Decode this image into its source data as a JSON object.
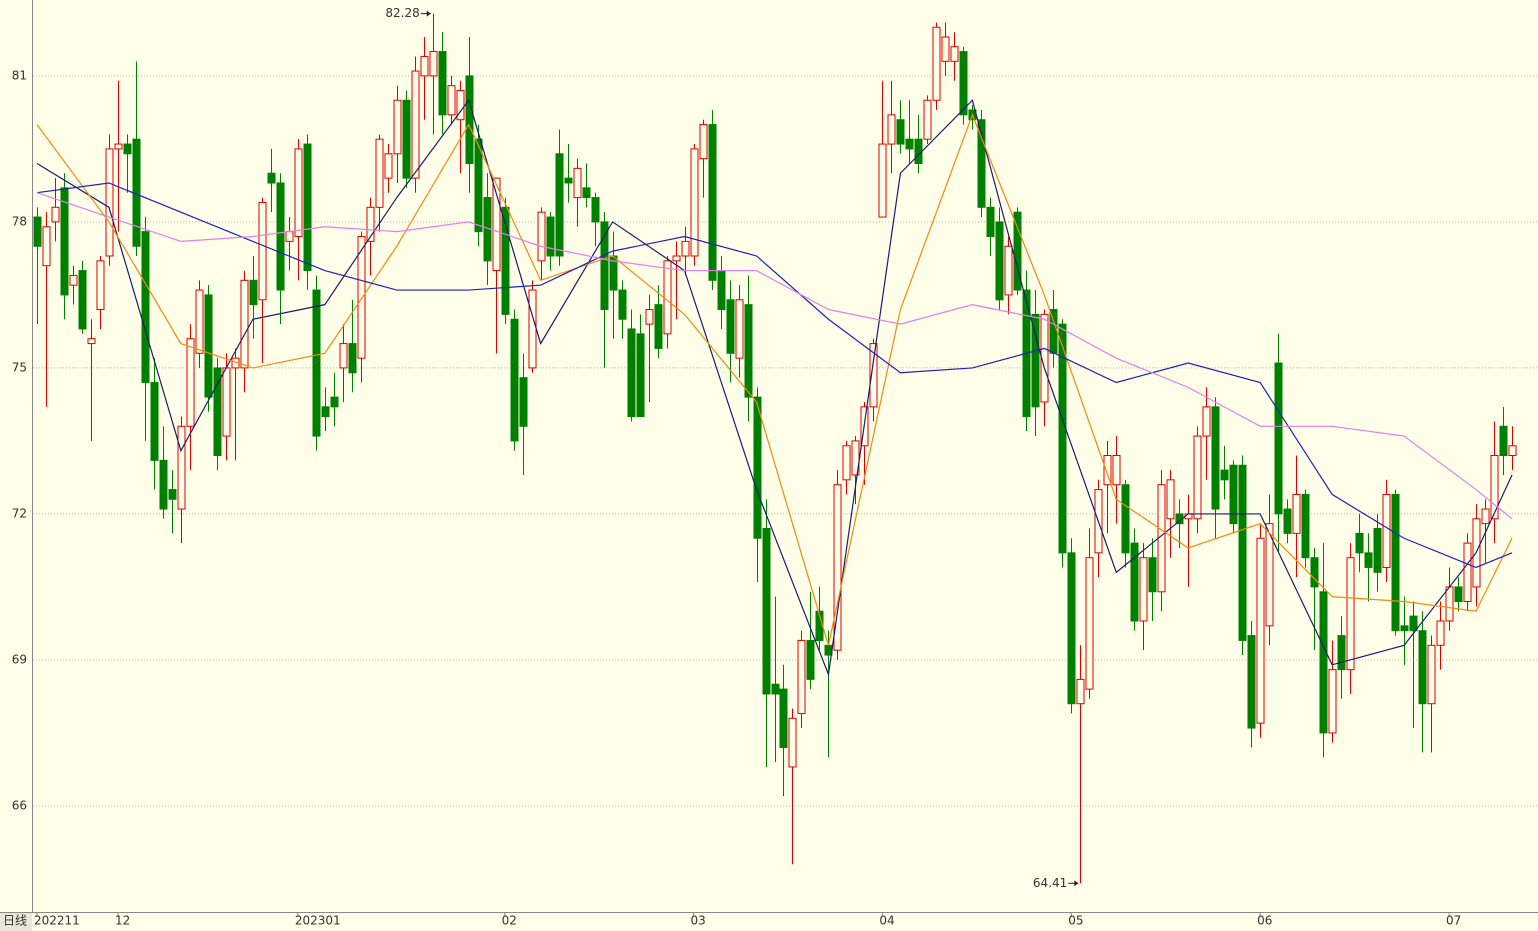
{
  "chart_data": {
    "type": "candlestick",
    "period_label": "日线",
    "categories": [
      "202211",
      null,
      null,
      null,
      null,
      null,
      null,
      null,
      null,
      "12",
      null,
      null,
      null,
      null,
      null,
      null,
      null,
      null,
      null,
      null,
      null,
      null,
      null,
      null,
      null,
      null,
      null,
      null,
      null,
      "202301",
      null,
      null,
      null,
      null,
      null,
      null,
      null,
      null,
      null,
      null,
      null,
      null,
      null,
      null,
      null,
      null,
      null,
      null,
      null,
      null,
      null,
      null,
      "02",
      null,
      null,
      null,
      null,
      null,
      null,
      null,
      null,
      null,
      null,
      null,
      null,
      null,
      null,
      null,
      null,
      null,
      null,
      null,
      null,
      "03",
      null,
      null,
      null,
      null,
      null,
      null,
      null,
      null,
      null,
      null,
      null,
      null,
      null,
      null,
      null,
      null,
      null,
      null,
      null,
      null,
      "04",
      null,
      null,
      null,
      null,
      null,
      null,
      null,
      null,
      null,
      null,
      null,
      null,
      null,
      null,
      null,
      null,
      null,
      null,
      null,
      null,
      "05",
      null,
      null,
      null,
      null,
      null,
      null,
      null,
      null,
      null,
      null,
      null,
      null,
      null,
      null,
      null,
      null,
      null,
      null,
      null,
      null,
      "06",
      null,
      null,
      null,
      null,
      null,
      null,
      null,
      null,
      null,
      null,
      null,
      null,
      null,
      null,
      null,
      null,
      null,
      null,
      null,
      null,
      "07",
      null,
      null,
      null,
      null,
      null,
      null,
      null
    ],
    "open": [
      78.1,
      77.1,
      78.0,
      78.7,
      76.7,
      77.0,
      75.5,
      76.2,
      77.3,
      79.5,
      79.6,
      79.7,
      77.8,
      74.7,
      73.1,
      72.5,
      72.1,
      73.8,
      75.3,
      76.5,
      75.0,
      73.6,
      75.0,
      75.0,
      76.8,
      76.4,
      79.0,
      78.8,
      77.6,
      77.7,
      79.6,
      76.6,
      74.2,
      74.4,
      75.0,
      75.5,
      75.2,
      77.6,
      78.3,
      78.9,
      79.4,
      80.5,
      78.9,
      81.0,
      81.0,
      81.5,
      80.2,
      80.1,
      81.0,
      79.7,
      78.5,
      77.0,
      78.3,
      76.0,
      74.8,
      75.0,
      77.2,
      78.1,
      79.4,
      78.9,
      78.5,
      78.7,
      78.5,
      78.0,
      77.3,
      76.6,
      75.8,
      75.7,
      75.9,
      76.3,
      75.7,
      77.2,
      77.3,
      77.3,
      79.3,
      80.0,
      77.0,
      76.4,
      75.2,
      76.3,
      74.4,
      71.7,
      68.5,
      68.4,
      66.8,
      67.9,
      69.4,
      70.0,
      69.3,
      69.2,
      72.7,
      72.8,
      73.4,
      74.2,
      78.1,
      79.6,
      80.1,
      79.7,
      79.7,
      79.7,
      80.5,
      81.3,
      81.3,
      81.5,
      80.3,
      80.1,
      78.3,
      78.0,
      76.5,
      78.2,
      76.6,
      76.1,
      74.3,
      76.2,
      75.9,
      71.2,
      68.1,
      68.4,
      71.2,
      72.6,
      72.6,
      72.6,
      71.4,
      69.8,
      71.1,
      70.4,
      71.9,
      72.0,
      71.9,
      71.9,
      73.6,
      74.2,
      72.9,
      73.0,
      73.0,
      69.5,
      67.7,
      69.7,
      75.1,
      72.1,
      71.6,
      72.4,
      71.1,
      70.4,
      67.5,
      69.5,
      68.8,
      71.6,
      71.2,
      71.7,
      70.9,
      72.4,
      69.7,
      69.9,
      69.6,
      68.1,
      69.3,
      69.8,
      70.5,
      70.2,
      70.5,
      71.8,
      71.9,
      73.8,
      73.2
    ],
    "high": [
      78.3,
      78.2,
      78.9,
      79.0,
      77.1,
      77.2,
      76.0,
      77.3,
      79.8,
      80.9,
      79.8,
      81.3,
      78.1,
      75.2,
      73.8,
      72.9,
      74.0,
      75.9,
      76.8,
      76.7,
      75.2,
      75.3,
      75.4,
      77.0,
      77.3,
      78.5,
      79.5,
      79.0,
      78.1,
      79.7,
      79.8,
      76.9,
      74.6,
      74.9,
      75.9,
      76.4,
      77.8,
      78.5,
      79.8,
      79.6,
      80.8,
      80.7,
      81.4,
      81.8,
      82.28,
      81.9,
      81.0,
      80.9,
      81.8,
      80.0,
      79.0,
      78.9,
      78.5,
      76.2,
      75.3,
      76.8,
      78.3,
      78.2,
      79.9,
      79.6,
      79.3,
      79.2,
      78.6,
      78.2,
      77.8,
      76.8,
      76.2,
      76.1,
      76.5,
      76.7,
      77.3,
      77.6,
      77.9,
      79.6,
      80.1,
      80.3,
      77.3,
      76.8,
      76.7,
      76.9,
      74.6,
      72.3,
      70.3,
      68.9,
      68.0,
      69.6,
      70.4,
      70.5,
      69.6,
      72.9,
      73.5,
      73.6,
      74.3,
      75.6,
      80.9,
      80.9,
      80.5,
      80.5,
      80.2,
      80.6,
      82.1,
      82.1,
      81.9,
      81.6,
      80.4,
      80.3,
      78.5,
      78.3,
      77.7,
      78.3,
      77.0,
      76.6,
      76.2,
      76.6,
      76.0,
      71.5,
      69.3,
      71.7,
      72.7,
      73.5,
      73.6,
      72.7,
      71.7,
      71.4,
      71.5,
      72.9,
      72.9,
      72.3,
      72.4,
      73.8,
      74.6,
      74.4,
      73.4,
      73.1,
      73.2,
      69.8,
      71.8,
      72.4,
      75.7,
      72.3,
      73.2,
      72.5,
      71.3,
      71.4,
      69.4,
      69.9,
      71.4,
      72.0,
      71.6,
      72.0,
      72.7,
      72.5,
      70.3,
      70.2,
      70.0,
      69.5,
      70.2,
      70.9,
      70.7,
      71.6,
      72.2,
      72.3,
      73.9,
      74.2,
      73.8
    ],
    "low": [
      75.9,
      74.2,
      77.6,
      76.0,
      76.3,
      75.7,
      73.5,
      75.8,
      77.1,
      77.8,
      78.6,
      77.3,
      73.5,
      72.5,
      71.9,
      71.6,
      71.4,
      72.9,
      75.0,
      74.1,
      72.9,
      73.1,
      73.1,
      74.5,
      75.6,
      75.1,
      78.2,
      75.9,
      77.0,
      76.8,
      76.6,
      73.3,
      73.7,
      73.8,
      74.3,
      74.5,
      74.7,
      76.9,
      77.8,
      78.6,
      78.8,
      78.7,
      78.6,
      80.1,
      79.8,
      79.8,
      80.0,
      79.0,
      78.6,
      77.5,
      76.7,
      75.3,
      75.9,
      73.3,
      72.8,
      74.9,
      76.8,
      77.0,
      77.1,
      78.4,
      77.9,
      78.3,
      77.5,
      75.0,
      75.6,
      75.6,
      73.9,
      74.0,
      74.3,
      75.2,
      75.4,
      76.0,
      76.9,
      77.1,
      78.5,
      76.6,
      75.8,
      74.7,
      74.8,
      73.9,
      70.6,
      66.8,
      66.9,
      66.2,
      64.8,
      67.6,
      68.4,
      69.2,
      67.0,
      69.0,
      72.4,
      72.2,
      72.6,
      73.9,
      78.1,
      79.0,
      79.4,
      79.2,
      79.0,
      79.6,
      80.3,
      81.0,
      80.9,
      80.0,
      79.9,
      78.1,
      77.3,
      76.2,
      76.1,
      76.5,
      73.7,
      73.6,
      73.8,
      75.0,
      70.9,
      67.9,
      64.41,
      68.2,
      70.7,
      71.6,
      71.8,
      70.9,
      69.6,
      69.2,
      69.8,
      70.0,
      71.1,
      71.3,
      70.5,
      71.6,
      72.7,
      71.5,
      72.3,
      71.6,
      69.1,
      67.2,
      67.4,
      69.3,
      71.2,
      71.4,
      70.7,
      70.9,
      69.2,
      67.0,
      67.3,
      68.2,
      68.3,
      70.8,
      70.2,
      70.4,
      70.6,
      69.5,
      68.9,
      67.6,
      67.1,
      67.1,
      68.8,
      69.6,
      70.0,
      70.0,
      70.1,
      71.0,
      71.4,
      72.8,
      72.9
    ],
    "close": [
      77.5,
      77.9,
      78.3,
      76.5,
      76.9,
      75.8,
      75.6,
      77.2,
      79.5,
      79.6,
      79.4,
      77.5,
      74.7,
      73.1,
      72.1,
      72.3,
      73.8,
      75.6,
      76.6,
      74.4,
      73.2,
      75.0,
      75.2,
      76.8,
      76.3,
      78.4,
      78.8,
      76.6,
      77.8,
      79.5,
      77.0,
      73.6,
      74.0,
      74.2,
      75.5,
      74.9,
      77.7,
      78.3,
      79.7,
      79.4,
      80.5,
      78.9,
      81.1,
      81.4,
      81.5,
      80.2,
      80.8,
      80.7,
      79.2,
      77.8,
      77.2,
      78.9,
      76.1,
      73.5,
      73.8,
      76.6,
      78.2,
      77.3,
      77.3,
      78.8,
      79.1,
      78.5,
      78.0,
      76.2,
      76.6,
      76.0,
      74.0,
      74.0,
      76.2,
      75.4,
      77.2,
      77.3,
      77.6,
      79.5,
      80.0,
      76.8,
      76.2,
      75.3,
      76.4,
      74.4,
      71.5,
      68.3,
      68.3,
      67.2,
      67.8,
      69.4,
      68.6,
      69.4,
      69.1,
      72.6,
      73.4,
      73.5,
      74.2,
      75.5,
      79.6,
      80.2,
      79.6,
      79.5,
      79.2,
      80.5,
      82.0,
      81.8,
      81.6,
      80.2,
      80.1,
      78.3,
      77.7,
      76.4,
      77.5,
      76.6,
      74.0,
      74.2,
      76.1,
      75.3,
      71.2,
      68.1,
      68.6,
      71.1,
      72.5,
      73.2,
      73.2,
      71.2,
      69.8,
      71.1,
      70.4,
      72.6,
      72.7,
      71.8,
      72.0,
      73.6,
      74.2,
      72.1,
      72.7,
      71.8,
      69.4,
      67.6,
      71.5,
      71.8,
      72.0,
      71.6,
      72.4,
      71.1,
      70.5,
      67.5,
      68.8,
      68.8,
      71.1,
      71.2,
      70.9,
      70.8,
      72.4,
      69.6,
      69.6,
      69.6,
      68.1,
      69.3,
      69.8,
      70.5,
      70.2,
      71.4,
      71.9,
      72.1,
      73.2,
      73.2,
      73.4
    ],
    "up_color": "#e00000",
    "down_color": "#008000",
    "lines": [
      {
        "color": "#1c1c6e",
        "x": [
          0,
          8,
          16,
          24,
          32,
          40,
          48,
          56,
          64,
          72,
          80,
          88,
          96,
          104,
          112,
          120,
          128,
          136,
          144,
          152,
          160,
          164
        ],
        "values": [
          79.2,
          78.3,
          73.3,
          76.0,
          76.3,
          78.5,
          80.5,
          75.5,
          78.0,
          77.0,
          72.5,
          68.7,
          79.0,
          80.5,
          75.0,
          70.8,
          72.0,
          72.0,
          68.9,
          69.3,
          71.2,
          72.8
        ]
      },
      {
        "color": "#f08a10",
        "x": [
          0,
          8,
          16,
          24,
          32,
          40,
          48,
          56,
          64,
          72,
          80,
          88,
          96,
          104,
          112,
          120,
          128,
          136,
          144,
          152,
          160,
          164
        ],
        "values": [
          80.0,
          78.0,
          75.5,
          75.0,
          75.3,
          77.5,
          80.0,
          76.8,
          77.3,
          76.1,
          74.3,
          69.3,
          76.2,
          80.2,
          76.5,
          72.3,
          71.3,
          71.8,
          70.3,
          70.2,
          70.0,
          71.5
        ]
      },
      {
        "color": "#2020c0",
        "x": [
          0,
          8,
          16,
          24,
          32,
          40,
          48,
          56,
          64,
          72,
          80,
          88,
          96,
          104,
          112,
          120,
          128,
          136,
          144,
          152,
          160,
          164
        ],
        "values": [
          78.6,
          78.8,
          78.2,
          77.6,
          77.0,
          76.6,
          76.6,
          76.7,
          77.4,
          77.7,
          77.3,
          76.0,
          74.9,
          75.0,
          75.4,
          74.7,
          75.1,
          74.7,
          72.4,
          71.5,
          70.9,
          71.2
        ]
      },
      {
        "color": "#e080e8",
        "x": [
          0,
          8,
          16,
          24,
          32,
          40,
          48,
          56,
          64,
          72,
          80,
          88,
          96,
          104,
          112,
          120,
          128,
          136,
          144,
          152,
          160,
          164
        ],
        "values": [
          78.6,
          78.1,
          77.6,
          77.7,
          77.9,
          77.8,
          78.0,
          77.5,
          77.2,
          77.0,
          77.0,
          76.2,
          75.9,
          76.3,
          76.0,
          75.2,
          74.6,
          73.8,
          73.8,
          73.6,
          72.5,
          71.9
        ]
      }
    ],
    "ylim": [
      63.82,
      82.56
    ],
    "yticks": [
      66,
      69,
      72,
      75,
      78,
      81
    ],
    "grid": true
  }
}
